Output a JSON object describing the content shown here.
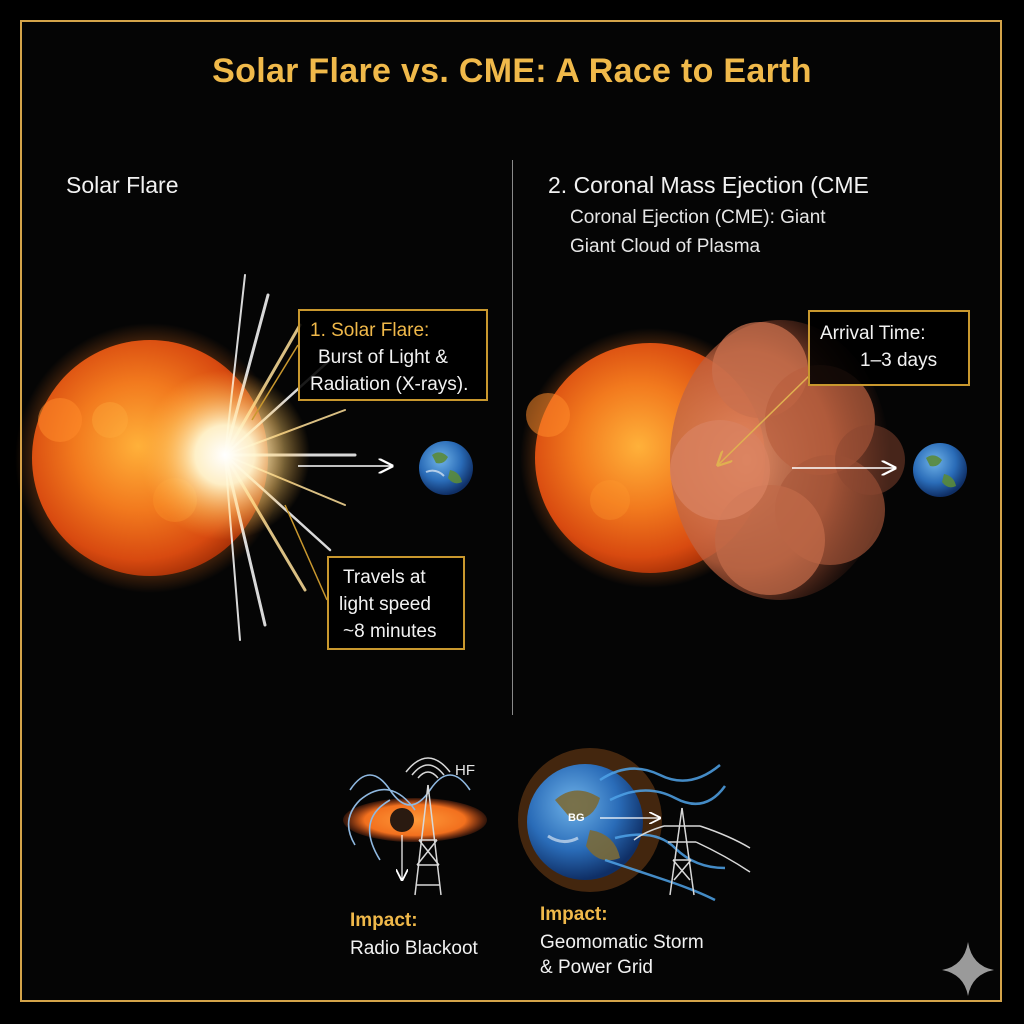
{
  "title": "Solar Flare vs. CME: A Race to Earth",
  "left": {
    "heading": "Solar Flare",
    "callout_top": {
      "line1": "1. Solar Flare:",
      "line2": "Burst of Light &",
      "line3": "Radiation (X-rays)."
    },
    "callout_bottom": {
      "line1": "Travels at",
      "line2": "light speed",
      "line3": "~8 minutes"
    }
  },
  "right": {
    "heading": "2. Coronal Mass Ejection (CME",
    "sub_line1": "Coronal Ejection (CME): Giant",
    "sub_line2": "Giant Cloud of Plasma",
    "callout": {
      "line1": "Arrival Time:",
      "line2": "1–3 days"
    }
  },
  "impacts": {
    "flare": {
      "label": "Impact:",
      "text": "Radio Blackoot",
      "signal": "HF"
    },
    "cme": {
      "label": "Impact:",
      "text1": "Geomomatic Storm",
      "text2": "& Power Grid",
      "earth_label": "BG"
    }
  },
  "colors": {
    "accent": "#f0b94a",
    "border": "#d4a44a",
    "sun": "#e8581a",
    "cme_cloud": "#c8694a"
  },
  "icons": [
    "sun-icon",
    "earth-icon",
    "radio-tower-icon",
    "power-pylon-icon",
    "sparkle-icon"
  ]
}
